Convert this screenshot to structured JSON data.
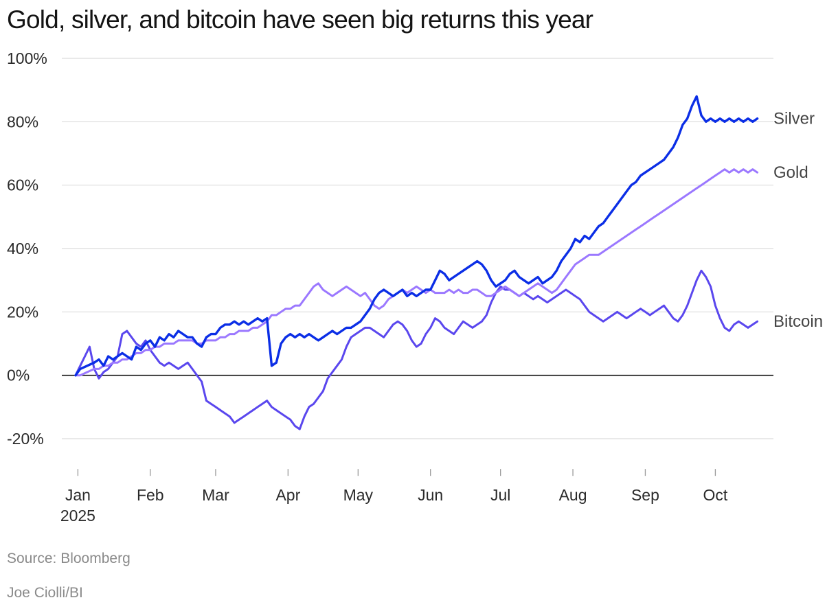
{
  "chart_data": {
    "type": "line",
    "title": "Gold, silver, and bitcoin have seen big returns this year",
    "xlabel": "",
    "ylabel": "",
    "ylim": [
      -30,
      100
    ],
    "y_ticks": [
      {
        "value": 100,
        "label": "100%"
      },
      {
        "value": 80,
        "label": "80%"
      },
      {
        "value": 60,
        "label": "60%"
      },
      {
        "value": 40,
        "label": "40%"
      },
      {
        "value": 20,
        "label": "20%"
      },
      {
        "value": 0,
        "label": "0%"
      },
      {
        "value": -20,
        "label": "-20%"
      }
    ],
    "x_unit": "day of year 2025",
    "xlim": [
      0,
      293
    ],
    "x_ticks": [
      {
        "value": 1,
        "label": "Jan",
        "sublabel": "2025"
      },
      {
        "value": 32,
        "label": "Feb"
      },
      {
        "value": 60,
        "label": "Mar"
      },
      {
        "value": 91,
        "label": "Apr"
      },
      {
        "value": 121,
        "label": "May"
      },
      {
        "value": 152,
        "label": "Jun"
      },
      {
        "value": 182,
        "label": "Jul"
      },
      {
        "value": 213,
        "label": "Aug"
      },
      {
        "value": 244,
        "label": "Sep"
      },
      {
        "value": 274,
        "label": "Oct"
      }
    ],
    "grid": true,
    "legend": "direct labels at line ends",
    "series": [
      {
        "name": "Silver",
        "color": "#0b2ee6",
        "x": [
          0,
          2,
          5,
          8,
          10,
          12,
          14,
          16,
          18,
          20,
          22,
          24,
          26,
          28,
          30,
          32,
          34,
          36,
          38,
          40,
          42,
          44,
          46,
          48,
          50,
          52,
          54,
          56,
          58,
          60,
          62,
          64,
          66,
          68,
          70,
          72,
          74,
          76,
          78,
          80,
          82,
          84,
          86,
          88,
          90,
          92,
          94,
          96,
          98,
          100,
          102,
          104,
          106,
          108,
          110,
          112,
          114,
          116,
          118,
          120,
          122,
          124,
          126,
          128,
          130,
          132,
          134,
          136,
          138,
          140,
          142,
          144,
          146,
          148,
          150,
          152,
          154,
          156,
          158,
          160,
          162,
          164,
          166,
          168,
          170,
          172,
          174,
          176,
          178,
          180,
          182,
          184,
          186,
          188,
          190,
          192,
          194,
          196,
          198,
          200,
          202,
          204,
          206,
          208,
          210,
          212,
          214,
          216,
          218,
          220,
          222,
          224,
          226,
          228,
          230,
          232,
          234,
          236,
          238,
          240,
          242,
          244,
          246,
          248,
          250,
          252,
          254,
          256,
          258,
          260,
          262,
          264,
          266,
          268,
          270,
          272,
          274,
          276,
          278,
          280,
          282,
          284,
          286,
          288,
          290,
          292
        ],
        "y": [
          0,
          2,
          3,
          4,
          5,
          3,
          6,
          5,
          6,
          7,
          6,
          5,
          9,
          8,
          10,
          11,
          9,
          12,
          11,
          13,
          12,
          14,
          13,
          12,
          12,
          10,
          9,
          12,
          13,
          13,
          15,
          16,
          16,
          17,
          16,
          17,
          16,
          17,
          18,
          17,
          18,
          3,
          4,
          10,
          12,
          13,
          12,
          13,
          12,
          13,
          12,
          11,
          12,
          13,
          14,
          13,
          14,
          15,
          15,
          16,
          17,
          19,
          21,
          24,
          26,
          27,
          26,
          25,
          26,
          27,
          25,
          26,
          25,
          26,
          27,
          27,
          30,
          33,
          32,
          30,
          31,
          32,
          33,
          34,
          35,
          36,
          35,
          33,
          30,
          28,
          29,
          30,
          32,
          33,
          31,
          30,
          29,
          30,
          31,
          29,
          30,
          31,
          33,
          36,
          38,
          40,
          43,
          42,
          44,
          43,
          45,
          47,
          48,
          50,
          52,
          54,
          56,
          58,
          60,
          61,
          63,
          64,
          65,
          66,
          67,
          68,
          70,
          72,
          75,
          79,
          81,
          85,
          88,
          82,
          80,
          81,
          80,
          81,
          80,
          81,
          80,
          81,
          80,
          81,
          80,
          81
        ],
        "end_label": "Silver"
      },
      {
        "name": "Gold",
        "color": "#9b78ff",
        "x": [
          0,
          2,
          5,
          8,
          10,
          12,
          14,
          16,
          18,
          20,
          22,
          24,
          26,
          28,
          30,
          32,
          34,
          36,
          38,
          40,
          42,
          44,
          46,
          48,
          50,
          52,
          54,
          56,
          58,
          60,
          62,
          64,
          66,
          68,
          70,
          72,
          74,
          76,
          78,
          80,
          82,
          84,
          86,
          88,
          90,
          92,
          94,
          96,
          98,
          100,
          102,
          104,
          106,
          108,
          110,
          112,
          114,
          116,
          118,
          120,
          122,
          124,
          126,
          128,
          130,
          132,
          134,
          136,
          138,
          140,
          142,
          144,
          146,
          148,
          150,
          152,
          154,
          156,
          158,
          160,
          162,
          164,
          166,
          168,
          170,
          172,
          174,
          176,
          178,
          180,
          182,
          184,
          186,
          188,
          190,
          192,
          194,
          196,
          198,
          200,
          202,
          204,
          206,
          208,
          210,
          212,
          214,
          216,
          218,
          220,
          222,
          224,
          226,
          228,
          230,
          232,
          234,
          236,
          238,
          240,
          242,
          244,
          246,
          248,
          250,
          252,
          254,
          256,
          258,
          260,
          262,
          264,
          266,
          268,
          270,
          272,
          274,
          276,
          278,
          280,
          282,
          284,
          286,
          288,
          290,
          292
        ],
        "y": [
          0,
          0,
          1,
          2,
          2,
          3,
          3,
          4,
          4,
          5,
          5,
          6,
          7,
          7,
          8,
          8,
          9,
          9,
          10,
          10,
          10,
          11,
          11,
          11,
          11,
          10,
          10,
          11,
          11,
          11,
          12,
          12,
          13,
          13,
          14,
          14,
          14,
          15,
          15,
          16,
          17,
          19,
          19,
          20,
          21,
          21,
          22,
          22,
          24,
          26,
          28,
          29,
          27,
          26,
          25,
          26,
          27,
          28,
          27,
          26,
          25,
          26,
          24,
          22,
          21,
          22,
          24,
          25,
          26,
          27,
          26,
          27,
          28,
          27,
          26,
          27,
          26,
          26,
          26,
          27,
          26,
          27,
          26,
          26,
          27,
          27,
          26,
          25,
          25,
          26,
          27,
          28,
          27,
          26,
          25,
          26,
          27,
          28,
          29,
          28,
          27,
          26,
          27,
          29,
          31,
          33,
          35,
          36,
          37,
          38,
          38,
          38,
          39,
          40,
          41,
          42,
          43,
          44,
          45,
          46,
          47,
          48,
          49,
          50,
          51,
          52,
          53,
          54,
          55,
          56,
          57,
          58,
          59,
          60,
          61,
          62,
          63,
          64,
          65,
          64,
          65,
          64,
          65,
          64,
          65,
          64
        ],
        "end_label": "Gold"
      },
      {
        "name": "Bitcoin",
        "color": "#5a47ee",
        "x": [
          0,
          2,
          4,
          6,
          8,
          10,
          12,
          14,
          16,
          18,
          20,
          22,
          24,
          26,
          28,
          30,
          32,
          34,
          36,
          38,
          40,
          42,
          44,
          46,
          48,
          50,
          52,
          54,
          56,
          58,
          60,
          62,
          64,
          66,
          68,
          70,
          72,
          74,
          76,
          78,
          80,
          82,
          84,
          86,
          88,
          90,
          92,
          94,
          96,
          98,
          100,
          102,
          104,
          106,
          108,
          110,
          112,
          114,
          116,
          118,
          120,
          122,
          124,
          126,
          128,
          130,
          132,
          134,
          136,
          138,
          140,
          142,
          144,
          146,
          148,
          150,
          152,
          154,
          156,
          158,
          160,
          162,
          164,
          166,
          168,
          170,
          172,
          174,
          176,
          178,
          180,
          182,
          184,
          186,
          188,
          190,
          192,
          194,
          196,
          198,
          200,
          202,
          204,
          206,
          208,
          210,
          212,
          214,
          216,
          218,
          220,
          222,
          224,
          226,
          228,
          230,
          232,
          234,
          236,
          238,
          240,
          242,
          244,
          246,
          248,
          250,
          252,
          254,
          256,
          258,
          260,
          262,
          264,
          266,
          268,
          270,
          272,
          274,
          276,
          278,
          280,
          282,
          284,
          286,
          288,
          290,
          292
        ],
        "y": [
          0,
          3,
          6,
          9,
          2,
          -1,
          1,
          2,
          4,
          6,
          13,
          14,
          12,
          10,
          9,
          11,
          8,
          6,
          4,
          3,
          4,
          3,
          2,
          3,
          4,
          2,
          0,
          -2,
          -8,
          -9,
          -10,
          -11,
          -12,
          -13,
          -15,
          -14,
          -13,
          -12,
          -11,
          -10,
          -9,
          -8,
          -10,
          -11,
          -12,
          -13,
          -14,
          -16,
          -17,
          -13,
          -10,
          -9,
          -7,
          -5,
          -1,
          1,
          3,
          5,
          9,
          12,
          13,
          14,
          15,
          15,
          14,
          13,
          12,
          14,
          16,
          17,
          16,
          14,
          11,
          9,
          10,
          13,
          15,
          18,
          17,
          15,
          14,
          13,
          15,
          17,
          16,
          15,
          16,
          17,
          19,
          23,
          26,
          28,
          27,
          27,
          26,
          25,
          26,
          25,
          24,
          25,
          24,
          23,
          24,
          25,
          26,
          27,
          26,
          25,
          24,
          22,
          20,
          19,
          18,
          17,
          18,
          19,
          20,
          19,
          18,
          19,
          20,
          21,
          20,
          19,
          20,
          21,
          22,
          20,
          18,
          17,
          19,
          22,
          26,
          30,
          33,
          31,
          28,
          22,
          18,
          15,
          14,
          16,
          17,
          16,
          15,
          16,
          17
        ],
        "end_label": "Bitcoin"
      }
    ]
  },
  "footer": {
    "source": "Source: Bloomberg",
    "credit": "Joe Ciolli/BI"
  }
}
